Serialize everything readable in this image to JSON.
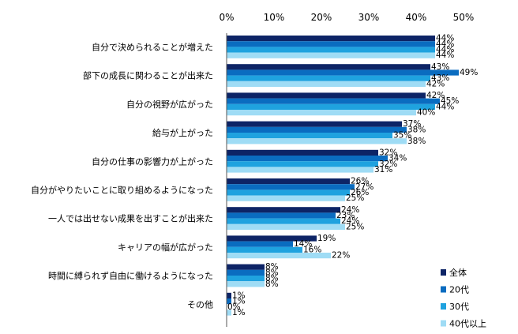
{
  "chart_data": {
    "type": "bar",
    "orientation": "horizontal",
    "title": "",
    "xlabel": "",
    "ylabel": "",
    "xlim": [
      0,
      50
    ],
    "ticks": [
      "0%",
      "10%",
      "20%",
      "30%",
      "40%",
      "50%"
    ],
    "tick_values": [
      0,
      10,
      20,
      30,
      40,
      50
    ],
    "grid": false,
    "legend_position": "bottom-right",
    "categories": [
      "自分で決められることが増えた",
      "部下の成長に関わることが出来た",
      "自分の視野が広がった",
      "給与が上がった",
      "自分の仕事の影響力が上がった",
      "自分がやりたいことに取り組めるようになった",
      "一人では出せない成果を出すことが出来た",
      "キャリアの幅が広がった",
      "時間に縛られず自由に働けるようになった",
      "その他"
    ],
    "series": [
      {
        "name": "全体",
        "color": "#0d2466",
        "values": [
          44,
          43,
          42,
          37,
          32,
          26,
          24,
          19,
          8,
          1
        ]
      },
      {
        "name": "20代",
        "color": "#0a6cc0",
        "values": [
          44,
          49,
          45,
          38,
          34,
          27,
          23,
          14,
          8,
          1
        ]
      },
      {
        "name": "30代",
        "color": "#1fa2df",
        "values": [
          44,
          43,
          44,
          35,
          32,
          26,
          24,
          16,
          8,
          0
        ]
      },
      {
        "name": "40代以上",
        "color": "#9fdcf5",
        "values": [
          44,
          42,
          40,
          38,
          31,
          25,
          25,
          22,
          8,
          1
        ]
      }
    ],
    "value_suffix": "%"
  }
}
